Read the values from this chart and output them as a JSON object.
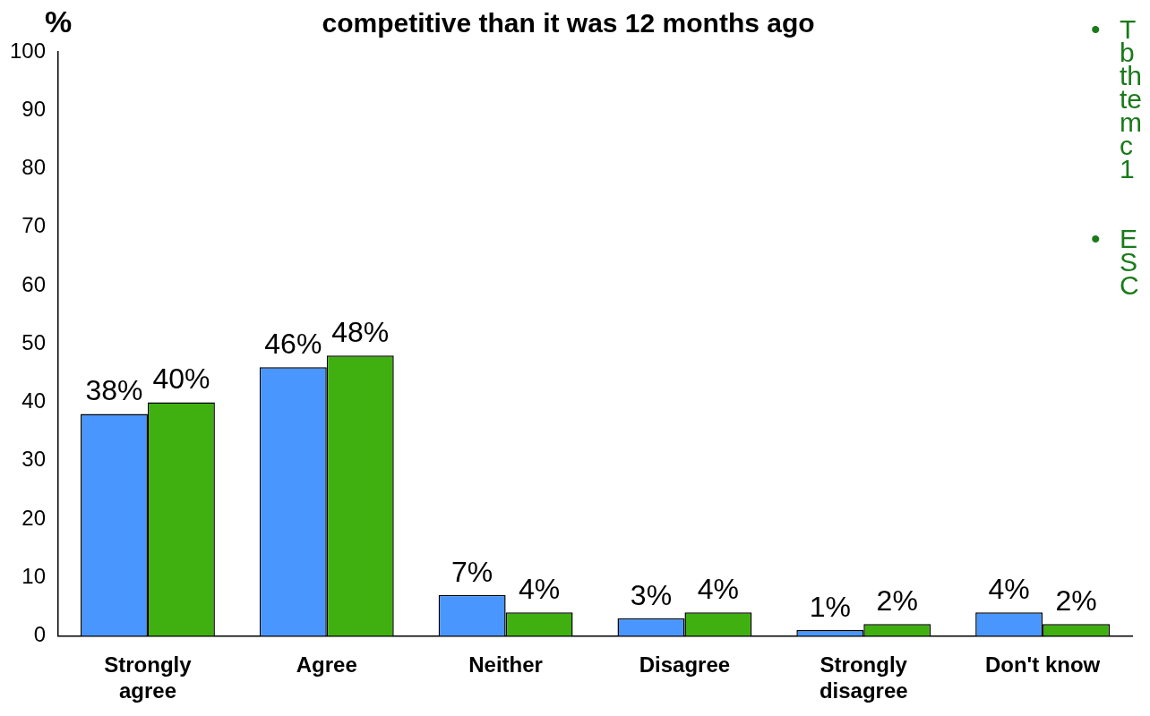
{
  "chart_data": {
    "type": "bar",
    "title": "competitive than it was 12 months ago",
    "ylabel": "%",
    "categories": [
      "Strongly agree",
      "Agree",
      "Neither",
      "Disagree",
      "Strongly disagree",
      "Don't know"
    ],
    "series": [
      {
        "color": "#4a96ff",
        "values": [
          38,
          46,
          7,
          3,
          1,
          4
        ],
        "value_labels": [
          "38%",
          "46%",
          "7%",
          "3%",
          "1%",
          "4%"
        ]
      },
      {
        "color": "#40b010",
        "values": [
          40,
          48,
          4,
          4,
          2,
          2
        ],
        "value_labels": [
          "40%",
          "48%",
          "4%",
          "4%",
          "2%",
          "2%"
        ]
      }
    ],
    "ylim": [
      0,
      100
    ],
    "yticks": [
      0,
      10,
      20,
      30,
      40,
      50,
      60,
      70,
      80,
      90,
      100
    ],
    "legend": false,
    "annotations": [
      "• T\nb\nth\nte\nm\nc\n1",
      "• E\nS\nC"
    ]
  }
}
